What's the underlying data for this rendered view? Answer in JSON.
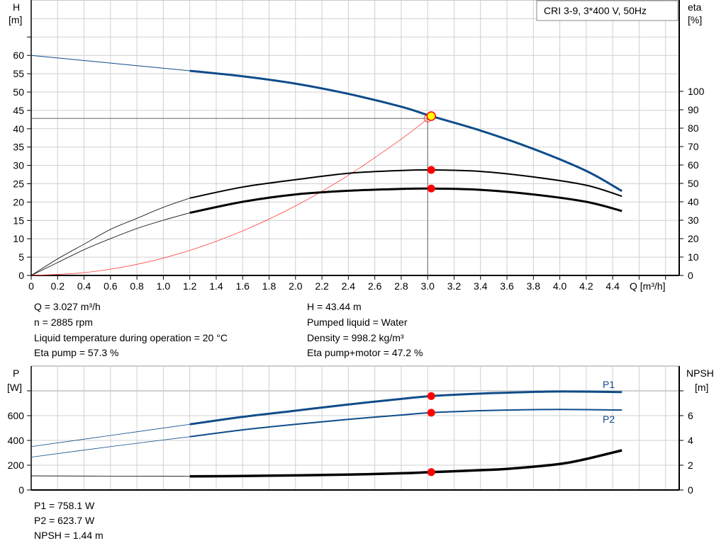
{
  "colors": {
    "head": "#0f4c8a",
    "eff": "#000000",
    "system": "#ff4040",
    "point": "#ff0000",
    "op_point": "#ffff00",
    "power": "#0f4c8a",
    "npsh": "#000000",
    "grid": "#d0d0d0"
  },
  "chart_data": [
    {
      "type": "line",
      "title": "CRI 3-9, 3*400 V, 50Hz",
      "xlabel": "Q [m³/h]",
      "ylabel_left": "H\n[m]",
      "ylabel_right": "eta\n[%]",
      "ylabel_left_lines": [
        "H",
        "[m]"
      ],
      "ylabel_right_lines": [
        "eta",
        "[%]"
      ],
      "xlim": [
        0,
        4.9
      ],
      "ylim_left": [
        0,
        75
      ],
      "ylim_right": [
        0,
        144
      ],
      "x_ticks": [
        "0",
        "0.2",
        "0.4",
        "0.6",
        "0.8",
        "1.0",
        "1.2",
        "1.4",
        "1.6",
        "1.8",
        "2.0",
        "2.2",
        "2.4",
        "2.6",
        "2.8",
        "3.0",
        "3.2",
        "3.4",
        "3.6",
        "3.8",
        "4.0",
        "4.2",
        "4.4"
      ],
      "y_left_ticks": [
        "0",
        "5",
        "10",
        "15",
        "20",
        "25",
        "30",
        "35",
        "40",
        "45",
        "50",
        "55",
        "60"
      ],
      "y_right_ticks": [
        "0",
        "10",
        "20",
        "30",
        "40",
        "50",
        "60",
        "70",
        "80",
        "90",
        "100"
      ],
      "grid": true,
      "series": [
        {
          "axis": "left",
          "role": "head",
          "x": [
            0,
            0.4,
            0.8,
            1.2,
            1.6,
            2.0,
            2.4,
            2.8,
            3.027,
            3.4,
            3.8,
            4.2,
            4.47
          ],
          "y": [
            60,
            58.6,
            57.2,
            55.8,
            54.3,
            52.3,
            49.5,
            46,
            43.44,
            39.5,
            34.5,
            28.5,
            23
          ],
          "thin_until": 1.2
        },
        {
          "axis": "right",
          "role": "eta-pump",
          "x": [
            0,
            0.2,
            0.4,
            0.6,
            0.8,
            1.0,
            1.2,
            1.6,
            2.0,
            2.4,
            2.8,
            3.027,
            3.4,
            3.8,
            4.2,
            4.47
          ],
          "y": [
            0,
            9,
            17,
            25,
            31,
            37,
            42,
            48,
            52,
            55.5,
            57,
            57.3,
            56.5,
            53.5,
            49,
            43
          ],
          "thin_until": 1.2
        },
        {
          "axis": "right",
          "role": "eta-pump-motor",
          "x": [
            0,
            0.2,
            0.4,
            0.6,
            0.8,
            1.0,
            1.2,
            1.6,
            2.0,
            2.4,
            2.8,
            3.027,
            3.4,
            3.8,
            4.2,
            4.47
          ],
          "y": [
            0,
            7,
            14,
            20,
            25.5,
            30,
            34,
            40,
            44,
            46,
            47,
            47.2,
            46.5,
            44,
            40,
            35
          ],
          "thin_until": 1.2
        },
        {
          "axis": "left",
          "role": "system",
          "x": [
            0,
            0.4,
            0.8,
            1.2,
            1.6,
            2.0,
            2.4,
            2.8,
            3.027
          ],
          "y": [
            0,
            0.76,
            3.03,
            6.83,
            12.14,
            18.96,
            27.3,
            37.17,
            43.44
          ]
        }
      ],
      "operating_point": {
        "Q": 3.027,
        "H": 43.44,
        "eta_pump": 57.3,
        "eta_pump_motor": 47.2
      },
      "crosshair": {
        "Q": 3.0,
        "H": 42.8
      }
    },
    {
      "type": "line",
      "ylabel_left_lines": [
        "P",
        "[W]"
      ],
      "ylabel_right_lines": [
        "NPSH",
        "[m]"
      ],
      "xlim": [
        0,
        4.9
      ],
      "ylim_left": [
        0,
        1000
      ],
      "ylim_right": [
        0,
        10
      ],
      "y_left_ticks": [
        "0",
        "200",
        "400",
        "600"
      ],
      "y_right_ticks": [
        "0",
        "2",
        "4",
        "6"
      ],
      "grid": true,
      "series": [
        {
          "name": "P1",
          "axis": "left",
          "x": [
            0,
            0.6,
            1.2,
            1.6,
            2.0,
            2.4,
            2.8,
            3.027,
            3.4,
            3.6,
            4.0,
            4.47
          ],
          "y": [
            350,
            440,
            530,
            590,
            640,
            690,
            735,
            758,
            778,
            785,
            795,
            790
          ],
          "thin_until": 1.2
        },
        {
          "name": "P2",
          "axis": "left",
          "x": [
            0,
            0.6,
            1.2,
            1.6,
            2.0,
            2.4,
            2.8,
            3.027,
            3.4,
            3.6,
            4.0,
            4.47
          ],
          "y": [
            265,
            350,
            430,
            485,
            530,
            570,
            605,
            624,
            640,
            645,
            650,
            645
          ],
          "thin_until": 1.2
        },
        {
          "axis": "right",
          "role": "npsh",
          "x": [
            0,
            1.2,
            1.6,
            2.0,
            2.4,
            2.8,
            3.027,
            3.4,
            3.6,
            4.0,
            4.2,
            4.47
          ],
          "y": [
            1.14,
            1.1,
            1.13,
            1.18,
            1.24,
            1.35,
            1.44,
            1.6,
            1.7,
            2.1,
            2.5,
            3.2
          ],
          "thin_until": 1.2
        }
      ],
      "operating_point": {
        "Q": 3.027,
        "P1": 758.1,
        "P2": 623.7,
        "NPSH": 1.44
      }
    }
  ],
  "info": {
    "q": "Q = 3.027 m³/h",
    "n": "n = 2885 rpm",
    "temp": "Liquid temperature during operation = 20 °C",
    "eta_pump": "Eta pump = 57.3 %",
    "h": "H = 43.44 m",
    "liquid": "Pumped liquid = Water",
    "density": "Density = 998.2 kg/m³",
    "eta_pm": "Eta pump+motor = 47.2 %",
    "p1": "P1 = 758.1 W",
    "p2": "P2 = 623.7 W",
    "npsh": "NPSH = 1.44 m"
  }
}
